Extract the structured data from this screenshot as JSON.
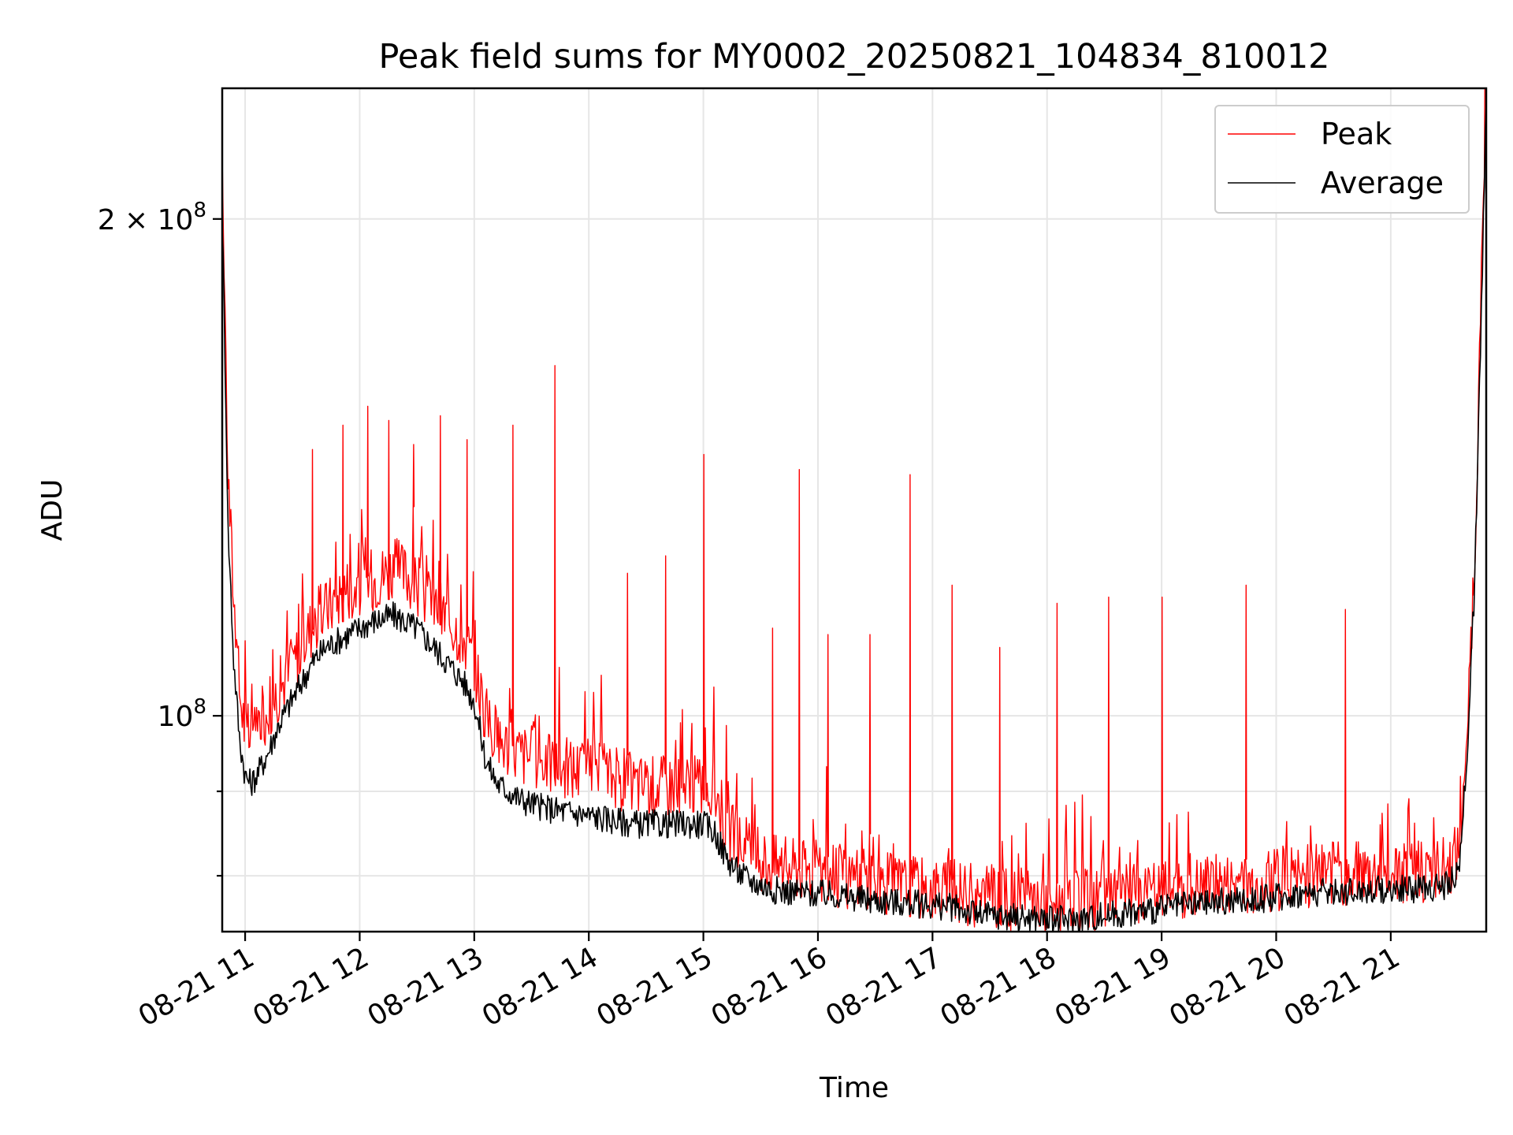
{
  "chart_data": {
    "type": "line",
    "title": "Peak field sums for MY0002_20250821_104834_810012",
    "xlabel": "Time",
    "ylabel": "ADU",
    "x_scale": "time",
    "y_scale": "log",
    "xlim": [
      "2025-08-21 10:48",
      "2025-08-21 21:50"
    ],
    "ylim": [
      74000000,
      240000000
    ],
    "grid": true,
    "legend": "top-right",
    "x_ticks": [
      {
        "value": "2025-08-21 11:00",
        "label": "08-21 11"
      },
      {
        "value": "2025-08-21 12:00",
        "label": "08-21 12"
      },
      {
        "value": "2025-08-21 13:00",
        "label": "08-21 13"
      },
      {
        "value": "2025-08-21 14:00",
        "label": "08-21 14"
      },
      {
        "value": "2025-08-21 15:00",
        "label": "08-21 15"
      },
      {
        "value": "2025-08-21 16:00",
        "label": "08-21 16"
      },
      {
        "value": "2025-08-21 17:00",
        "label": "08-21 17"
      },
      {
        "value": "2025-08-21 18:00",
        "label": "08-21 18"
      },
      {
        "value": "2025-08-21 19:00",
        "label": "08-21 19"
      },
      {
        "value": "2025-08-21 20:00",
        "label": "08-21 20"
      },
      {
        "value": "2025-08-21 21:00",
        "label": "08-21 21"
      }
    ],
    "y_major_ticks": [
      {
        "value": 100000000,
        "base": "10",
        "exp": "8",
        "coef": ""
      },
      {
        "value": 200000000,
        "base": "10",
        "exp": "8",
        "coef": "2"
      }
    ],
    "y_minor_ticks": [
      90000000,
      80000000
    ],
    "series": [
      {
        "name": "Peak",
        "color": "#ff0000",
        "x": [
          "2025-08-21 10:48",
          "2025-08-21 10:51",
          "2025-08-21 10:54",
          "2025-08-21 10:57",
          "2025-08-21 11:00",
          "2025-08-21 11:03",
          "2025-08-21 11:06",
          "2025-08-21 11:12",
          "2025-08-21 11:18",
          "2025-08-21 11:24",
          "2025-08-21 11:30",
          "2025-08-21 11:36",
          "2025-08-21 11:42",
          "2025-08-21 11:48",
          "2025-08-21 11:54",
          "2025-08-21 12:00",
          "2025-08-21 12:06",
          "2025-08-21 12:12",
          "2025-08-21 12:18",
          "2025-08-21 12:24",
          "2025-08-21 12:30",
          "2025-08-21 12:36",
          "2025-08-21 12:42",
          "2025-08-21 12:48",
          "2025-08-21 12:54",
          "2025-08-21 13:00",
          "2025-08-21 13:06",
          "2025-08-21 13:12",
          "2025-08-21 13:24",
          "2025-08-21 13:36",
          "2025-08-21 13:48",
          "2025-08-21 14:00",
          "2025-08-21 14:12",
          "2025-08-21 14:24",
          "2025-08-21 14:36",
          "2025-08-21 14:48",
          "2025-08-21 15:00",
          "2025-08-21 15:06",
          "2025-08-21 15:12",
          "2025-08-21 15:18",
          "2025-08-21 15:24",
          "2025-08-21 15:30",
          "2025-08-21 15:36",
          "2025-08-21 15:48",
          "2025-08-21 16:00",
          "2025-08-21 16:12",
          "2025-08-21 16:24",
          "2025-08-21 16:36",
          "2025-08-21 16:48",
          "2025-08-21 17:00",
          "2025-08-21 17:12",
          "2025-08-21 17:24",
          "2025-08-21 17:36",
          "2025-08-21 17:48",
          "2025-08-21 18:00",
          "2025-08-21 18:12",
          "2025-08-21 18:24",
          "2025-08-21 18:36",
          "2025-08-21 18:48",
          "2025-08-21 19:00",
          "2025-08-21 19:12",
          "2025-08-21 19:24",
          "2025-08-21 19:36",
          "2025-08-21 19:48",
          "2025-08-21 20:00",
          "2025-08-21 20:12",
          "2025-08-21 20:24",
          "2025-08-21 20:36",
          "2025-08-21 20:48",
          "2025-08-21 21:00",
          "2025-08-21 21:12",
          "2025-08-21 21:24",
          "2025-08-21 21:30",
          "2025-08-21 21:36",
          "2025-08-21 21:40",
          "2025-08-21 21:44",
          "2025-08-21 21:47",
          "2025-08-21 21:50"
        ],
        "y": [
          210000000,
          140000000,
          118000000,
          104000000,
          98000000,
          97000000,
          99000000,
          101000000,
          104000000,
          107000000,
          111000000,
          114000000,
          116000000,
          118000000,
          120000000,
          120000000,
          121000000,
          122000000,
          123000000,
          122000000,
          120000000,
          118000000,
          116000000,
          114000000,
          112000000,
          108000000,
          100000000,
          97000000,
          95000000,
          94000000,
          93000000,
          93000000,
          92000000,
          91000000,
          91000000,
          91000000,
          91000000,
          90000000,
          86000000,
          84000000,
          83000000,
          82000000,
          81500000,
          81000000,
          80500000,
          80000000,
          79500000,
          79200000,
          79000000,
          78800000,
          78400000,
          77800000,
          77600000,
          77500000,
          77300000,
          77200000,
          77500000,
          77800000,
          78200000,
          78500000,
          78700000,
          79000000,
          79200000,
          79400000,
          79700000,
          80000000,
          80200000,
          80300000,
          80400000,
          80500000,
          80600000,
          80800000,
          81000000,
          83000000,
          98000000,
          125000000,
          170000000,
          240000000
        ],
        "spikes": [
          {
            "x": "2025-08-21 11:35",
            "y": 145000000
          },
          {
            "x": "2025-08-21 11:51",
            "y": 150000000
          },
          {
            "x": "2025-08-21 12:04",
            "y": 154000000
          },
          {
            "x": "2025-08-21 12:15",
            "y": 151000000
          },
          {
            "x": "2025-08-21 12:28",
            "y": 146000000
          },
          {
            "x": "2025-08-21 12:42",
            "y": 152000000
          },
          {
            "x": "2025-08-21 12:56",
            "y": 147000000
          },
          {
            "x": "2025-08-21 13:20",
            "y": 150000000
          },
          {
            "x": "2025-08-21 13:42",
            "y": 163000000
          },
          {
            "x": "2025-08-21 14:20",
            "y": 122000000
          },
          {
            "x": "2025-08-21 14:40",
            "y": 125000000
          },
          {
            "x": "2025-08-21 15:00",
            "y": 144000000
          },
          {
            "x": "2025-08-21 15:36",
            "y": 113000000
          },
          {
            "x": "2025-08-21 15:50",
            "y": 141000000
          },
          {
            "x": "2025-08-21 16:05",
            "y": 112000000
          },
          {
            "x": "2025-08-21 16:27",
            "y": 112000000
          },
          {
            "x": "2025-08-21 16:48",
            "y": 140000000
          },
          {
            "x": "2025-08-21 17:10",
            "y": 120000000
          },
          {
            "x": "2025-08-21 17:35",
            "y": 110000000
          },
          {
            "x": "2025-08-21 18:05",
            "y": 117000000
          },
          {
            "x": "2025-08-21 18:32",
            "y": 118000000
          },
          {
            "x": "2025-08-21 19:00",
            "y": 118000000
          },
          {
            "x": "2025-08-21 19:44",
            "y": 120000000
          },
          {
            "x": "2025-08-21 20:36",
            "y": 116000000
          }
        ]
      },
      {
        "name": "Average",
        "color": "#000000",
        "x": [
          "2025-08-21 10:48",
          "2025-08-21 10:51",
          "2025-08-21 10:54",
          "2025-08-21 10:57",
          "2025-08-21 11:00",
          "2025-08-21 11:03",
          "2025-08-21 11:06",
          "2025-08-21 11:12",
          "2025-08-21 11:18",
          "2025-08-21 11:24",
          "2025-08-21 11:30",
          "2025-08-21 11:36",
          "2025-08-21 11:42",
          "2025-08-21 11:48",
          "2025-08-21 11:54",
          "2025-08-21 12:00",
          "2025-08-21 12:06",
          "2025-08-21 12:12",
          "2025-08-21 12:18",
          "2025-08-21 12:24",
          "2025-08-21 12:30",
          "2025-08-21 12:36",
          "2025-08-21 12:42",
          "2025-08-21 12:48",
          "2025-08-21 12:54",
          "2025-08-21 13:00",
          "2025-08-21 13:06",
          "2025-08-21 13:12",
          "2025-08-21 13:24",
          "2025-08-21 13:36",
          "2025-08-21 13:48",
          "2025-08-21 14:00",
          "2025-08-21 14:12",
          "2025-08-21 14:24",
          "2025-08-21 14:36",
          "2025-08-21 14:48",
          "2025-08-21 15:00",
          "2025-08-21 15:06",
          "2025-08-21 15:12",
          "2025-08-21 15:18",
          "2025-08-21 15:24",
          "2025-08-21 15:30",
          "2025-08-21 15:36",
          "2025-08-21 15:48",
          "2025-08-21 16:00",
          "2025-08-21 16:12",
          "2025-08-21 16:24",
          "2025-08-21 16:36",
          "2025-08-21 16:48",
          "2025-08-21 17:00",
          "2025-08-21 17:12",
          "2025-08-21 17:24",
          "2025-08-21 17:36",
          "2025-08-21 17:48",
          "2025-08-21 18:00",
          "2025-08-21 18:12",
          "2025-08-21 18:24",
          "2025-08-21 18:36",
          "2025-08-21 18:48",
          "2025-08-21 19:00",
          "2025-08-21 19:12",
          "2025-08-21 19:24",
          "2025-08-21 19:36",
          "2025-08-21 19:48",
          "2025-08-21 20:00",
          "2025-08-21 20:12",
          "2025-08-21 20:24",
          "2025-08-21 20:36",
          "2025-08-21 20:48",
          "2025-08-21 21:00",
          "2025-08-21 21:12",
          "2025-08-21 21:24",
          "2025-08-21 21:30",
          "2025-08-21 21:36",
          "2025-08-21 21:40",
          "2025-08-21 21:44",
          "2025-08-21 21:47",
          "2025-08-21 21:50"
        ],
        "y": [
          200000000,
          130000000,
          108000000,
          97000000,
          92000000,
          91000000,
          92000000,
          95000000,
          99000000,
          102000000,
          105000000,
          108000000,
          110000000,
          111000000,
          112000000,
          113000000,
          114000000,
          114500000,
          115000000,
          114000000,
          113000000,
          111000000,
          109000000,
          107000000,
          105000000,
          102000000,
          94000000,
          91000000,
          89000000,
          88000000,
          87500000,
          87000000,
          86500000,
          86000000,
          86000000,
          86000000,
          86000000,
          85000000,
          82000000,
          80500000,
          79500000,
          79000000,
          78500000,
          78200000,
          78000000,
          77800000,
          77400000,
          77200000,
          77000000,
          76800000,
          76500000,
          75800000,
          75600000,
          75500000,
          75300000,
          75200000,
          75500000,
          75800000,
          76100000,
          76400000,
          76700000,
          77000000,
          77200000,
          77400000,
          77700000,
          78000000,
          78200000,
          78300000,
          78400000,
          78500000,
          78600000,
          78800000,
          79000000,
          80500000,
          95000000,
          120000000,
          165000000,
          235000000
        ]
      }
    ]
  }
}
